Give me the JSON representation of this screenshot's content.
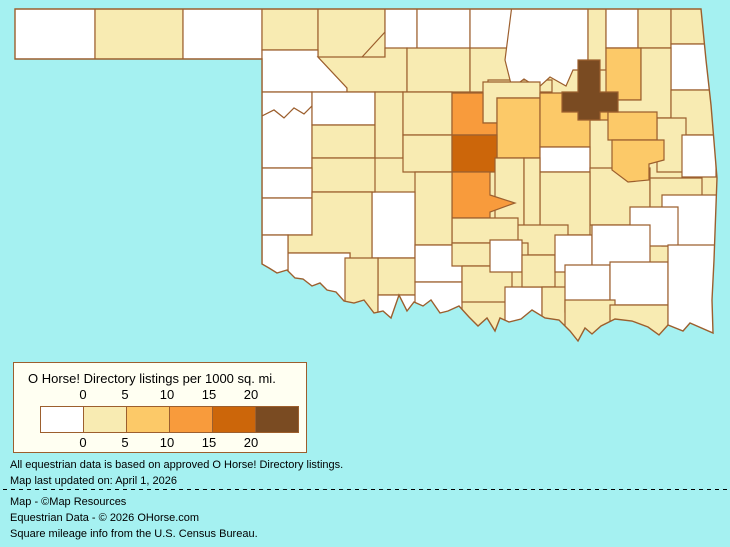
{
  "map": {
    "region": "Oklahoma",
    "background_color": "#A5F1F1",
    "county_border_color": "#9C5F2E",
    "counties": [
      {
        "name": "Cimarron",
        "bin": 0
      },
      {
        "name": "Texas",
        "bin": 1
      },
      {
        "name": "Beaver",
        "bin": 0
      },
      {
        "name": "Harper",
        "bin": 1
      },
      {
        "name": "Woods",
        "bin": 1
      },
      {
        "name": "Alfalfa",
        "bin": 0
      },
      {
        "name": "Grant",
        "bin": 0
      },
      {
        "name": "Kay",
        "bin": 0
      },
      {
        "name": "Osage",
        "bin": 0
      },
      {
        "name": "Washington",
        "bin": 1
      },
      {
        "name": "Nowata",
        "bin": 0
      },
      {
        "name": "Craig",
        "bin": 1
      },
      {
        "name": "Ottawa",
        "bin": 1
      },
      {
        "name": "Delaware",
        "bin": 0
      },
      {
        "name": "Rogers",
        "bin": 2
      },
      {
        "name": "Mayes",
        "bin": 1
      },
      {
        "name": "Adair",
        "bin": 1
      },
      {
        "name": "Cherokee",
        "bin": 1
      },
      {
        "name": "Sequoyah",
        "bin": 0
      },
      {
        "name": "Woodward",
        "bin": 0
      },
      {
        "name": "Major",
        "bin": 1
      },
      {
        "name": "Garfield",
        "bin": 1
      },
      {
        "name": "Noble",
        "bin": 1
      },
      {
        "name": "Pawnee",
        "bin": 1
      },
      {
        "name": "Ellis",
        "bin": 0
      },
      {
        "name": "RogerMills",
        "bin": 0
      },
      {
        "name": "Dewey",
        "bin": 0
      },
      {
        "name": "Custer",
        "bin": 1
      },
      {
        "name": "Blaine",
        "bin": 1
      },
      {
        "name": "Kingfisher",
        "bin": 1
      },
      {
        "name": "Logan",
        "bin": 3
      },
      {
        "name": "Payne",
        "bin": 1
      },
      {
        "name": "Lincoln",
        "bin": 2
      },
      {
        "name": "Canadian",
        "bin": 1
      },
      {
        "name": "Oklahoma",
        "bin": 4
      },
      {
        "name": "Creek",
        "bin": 2
      },
      {
        "name": "Tulsa",
        "bin": 5
      },
      {
        "name": "Okmulgee",
        "bin": 1
      },
      {
        "name": "Okfuskee",
        "bin": 0
      },
      {
        "name": "Wagoner",
        "bin": 2
      },
      {
        "name": "Muskogee",
        "bin": 2
      },
      {
        "name": "McIntosh",
        "bin": 1
      },
      {
        "name": "Haskell",
        "bin": 1
      },
      {
        "name": "LeFlore",
        "bin": 0
      },
      {
        "name": "Latimer",
        "bin": 0
      },
      {
        "name": "Hughes",
        "bin": 1
      },
      {
        "name": "Pottawatomie",
        "bin": 1
      },
      {
        "name": "Seminole",
        "bin": 1
      },
      {
        "name": "Cleveland",
        "bin": 3
      },
      {
        "name": "McClain",
        "bin": 1
      },
      {
        "name": "Grady",
        "bin": 1
      },
      {
        "name": "Caddo",
        "bin": 0
      },
      {
        "name": "Washita",
        "bin": 1
      },
      {
        "name": "Beckham",
        "bin": 0
      },
      {
        "name": "Greer",
        "bin": 0
      },
      {
        "name": "Kiowa",
        "bin": 1
      },
      {
        "name": "Jackson",
        "bin": 0
      },
      {
        "name": "Harmon",
        "bin": 0
      },
      {
        "name": "Tillman",
        "bin": 1
      },
      {
        "name": "Comanche",
        "bin": 1
      },
      {
        "name": "Cotton",
        "bin": 0
      },
      {
        "name": "Stephens",
        "bin": 0
      },
      {
        "name": "Jefferson",
        "bin": 0
      },
      {
        "name": "Garvin",
        "bin": 1
      },
      {
        "name": "Carter",
        "bin": 1
      },
      {
        "name": "Murray",
        "bin": 0
      },
      {
        "name": "Love",
        "bin": 0
      },
      {
        "name": "Pontotoc",
        "bin": 1
      },
      {
        "name": "Coal",
        "bin": 0
      },
      {
        "name": "Johnston",
        "bin": 1
      },
      {
        "name": "Marshall",
        "bin": 1
      },
      {
        "name": "Pittsburg",
        "bin": 0
      },
      {
        "name": "Atoka",
        "bin": 0
      },
      {
        "name": "Pushmataha",
        "bin": 0
      },
      {
        "name": "Bryan",
        "bin": 1
      },
      {
        "name": "Choctaw",
        "bin": 1
      },
      {
        "name": "McCurtain",
        "bin": 0
      }
    ]
  },
  "legend": {
    "title": "O Horse! Directory listings per 1000 sq. mi.",
    "ticks": [
      "0",
      "5",
      "10",
      "15",
      "20"
    ],
    "bins": [
      {
        "label": "0",
        "color": "#FFFFFF"
      },
      {
        "label": "0–5",
        "color": "#F8EBB2"
      },
      {
        "label": "5–10",
        "color": "#FCC968"
      },
      {
        "label": "10–15",
        "color": "#F89B3C"
      },
      {
        "label": "15–20",
        "color": "#CC660A"
      },
      {
        "label": "20+",
        "color": "#7A4B22"
      }
    ]
  },
  "footnotes": {
    "line1": "All equestrian data is based on approved O Horse! Directory listings.",
    "line2": "Map last updated on: April 1, 2026"
  },
  "credits": {
    "line1": "Map - ©Map Resources",
    "line2": "Equestrian Data - © 2026 OHorse.com",
    "line3": "Square mileage info from the U.S. Census Bureau."
  }
}
